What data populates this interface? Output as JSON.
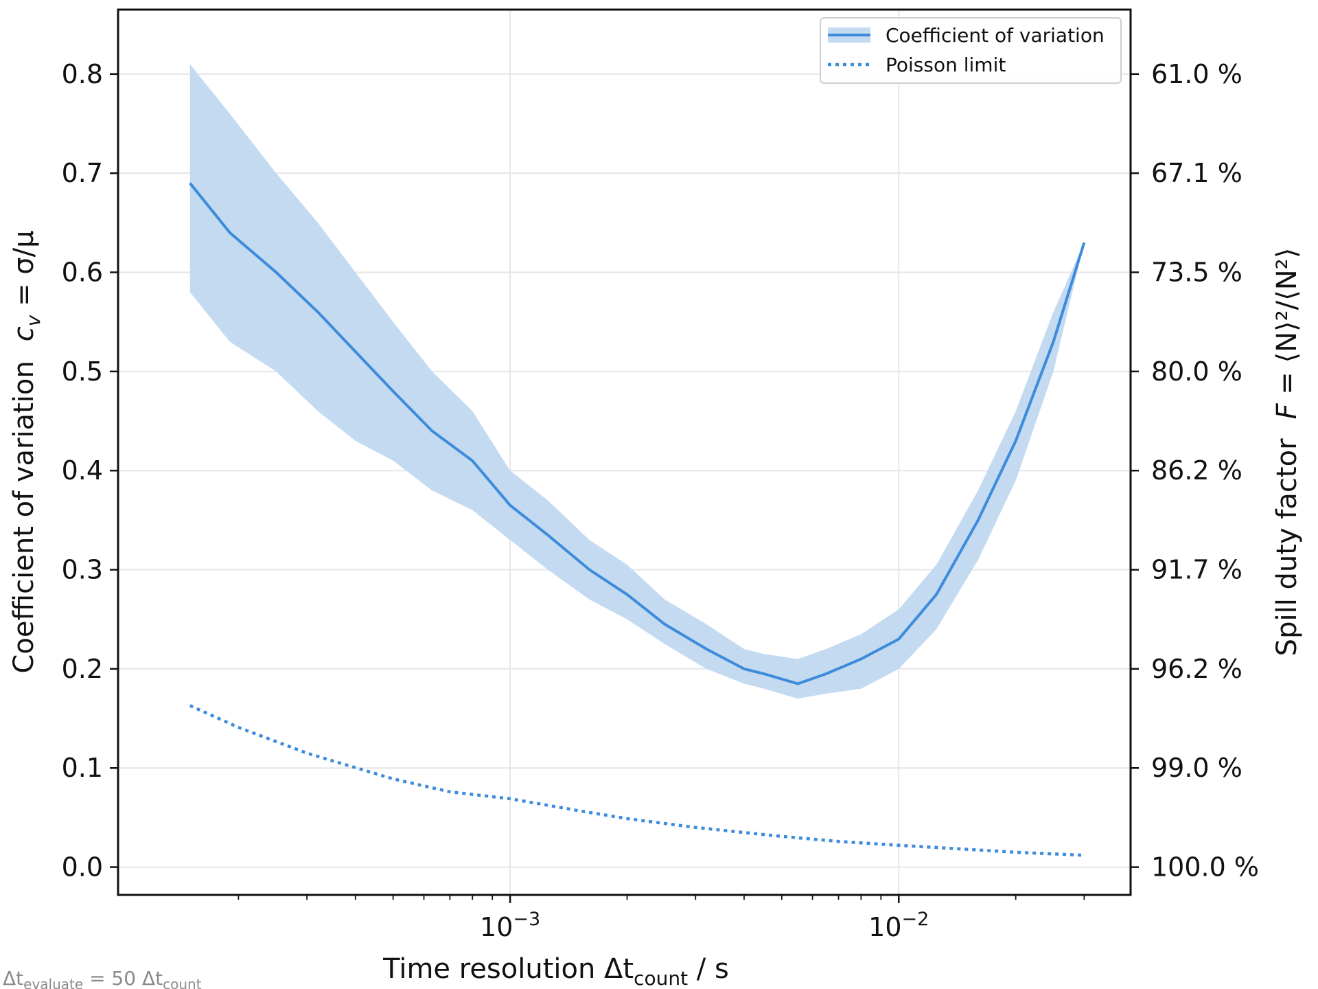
{
  "chart_data": {
    "type": "line",
    "xscale": "log",
    "xlim": [
      9.8e-05,
      0.0395
    ],
    "ylim": [
      -0.028,
      0.865
    ],
    "grid": true,
    "legend_position": "top-right",
    "colors": {
      "series": "#3d8bdb",
      "band": "#c3daf1",
      "axes": "#111111",
      "grid": "#e6e6e6",
      "footnote": "#8a8a8a"
    },
    "xlabel": {
      "main": "Time resolution   Δt",
      "sub": "count",
      "unit": " / s"
    },
    "ylabel": {
      "left": "Coefficient of variation",
      "left_symbol": "c",
      "left_symbol_sub": "v",
      "left_eq": " = σ/μ"
    },
    "y2label": {
      "main": "Spill duty factor",
      "symbol": "F",
      "eq": " = ⟨N⟩²/⟨N²⟩"
    },
    "x_ticks": [
      {
        "value": 0.001,
        "base": "10",
        "exp": "−3"
      },
      {
        "value": 0.01,
        "base": "10",
        "exp": "−2"
      }
    ],
    "y_ticks": [
      0.0,
      0.1,
      0.2,
      0.3,
      0.4,
      0.5,
      0.6,
      0.7,
      0.8
    ],
    "y_tick_labels": [
      "0.0",
      "0.1",
      "0.2",
      "0.3",
      "0.4",
      "0.5",
      "0.6",
      "0.7",
      "0.8"
    ],
    "y2_tick_labels": [
      "100.0 %",
      "99.0 %",
      "96.2 %",
      "91.7 %",
      "86.2 %",
      "80.0 %",
      "73.5 %",
      "67.1 %",
      "61.0 %"
    ],
    "legend": {
      "cv": "Coefficient of variation",
      "poisson": "Poisson limit"
    },
    "footnote": {
      "delta": "Δt",
      "sub1": "evaluate",
      "mid": " = 50 Δt",
      "sub2": "count"
    },
    "series": [
      {
        "name": "Coefficient of variation",
        "x": [
          0.00015,
          0.00019,
          0.00025,
          0.00032,
          0.0004,
          0.0005,
          0.00063,
          0.0008,
          0.001,
          0.00125,
          0.0016,
          0.002,
          0.0025,
          0.0032,
          0.004,
          0.0045,
          0.0055,
          0.0065,
          0.008,
          0.01,
          0.0125,
          0.016,
          0.02,
          0.025,
          0.03
        ],
        "y": [
          0.69,
          0.64,
          0.6,
          0.56,
          0.52,
          0.48,
          0.44,
          0.41,
          0.365,
          0.335,
          0.3,
          0.275,
          0.245,
          0.22,
          0.2,
          0.195,
          0.185,
          0.195,
          0.21,
          0.23,
          0.275,
          0.35,
          0.43,
          0.53,
          0.63
        ],
        "upper": [
          0.81,
          0.76,
          0.7,
          0.65,
          0.6,
          0.55,
          0.5,
          0.46,
          0.4,
          0.37,
          0.33,
          0.305,
          0.27,
          0.245,
          0.22,
          0.215,
          0.21,
          0.22,
          0.235,
          0.26,
          0.305,
          0.38,
          0.46,
          0.56,
          0.63
        ],
        "lower": [
          0.58,
          0.53,
          0.5,
          0.46,
          0.43,
          0.41,
          0.38,
          0.36,
          0.33,
          0.3,
          0.27,
          0.25,
          0.225,
          0.2,
          0.185,
          0.18,
          0.17,
          0.175,
          0.18,
          0.2,
          0.24,
          0.31,
          0.39,
          0.5,
          0.63
        ]
      },
      {
        "name": "Poisson limit",
        "x": [
          0.00015,
          0.0002,
          0.0003,
          0.0005,
          0.0007,
          0.001,
          0.0015,
          0.002,
          0.003,
          0.005,
          0.007,
          0.01,
          0.015,
          0.02,
          0.03
        ],
        "y": [
          0.163,
          0.141,
          0.115,
          0.089,
          0.076,
          0.069,
          0.057,
          0.049,
          0.04,
          0.031,
          0.026,
          0.022,
          0.018,
          0.015,
          0.012
        ]
      }
    ]
  }
}
